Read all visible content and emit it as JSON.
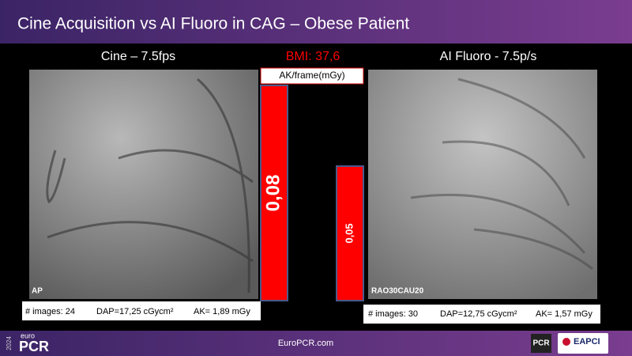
{
  "header": {
    "title": "Cine Acquisition vs AI Fluoro in CAG – Obese Patient"
  },
  "panels": [
    {
      "title": "Cine – 7.5fps",
      "view_label": "AP",
      "stats": [
        "# images: 24",
        "DAP=17,25 cGycm²",
        "AK= 1,89 mGy"
      ]
    },
    {
      "title": "AI Fluoro - 7.5p/s",
      "view_label": "RAO30CAU20",
      "stats": [
        "# images: 30",
        "DAP=12,75 cGycm²",
        "AK= 1,57 mGy"
      ]
    }
  ],
  "chart_data": {
    "type": "bar",
    "annotation": "BMI: 37,6",
    "title": "AK/frame(mGy)",
    "values": [
      0.08,
      0.05
    ],
    "value_labels": [
      "0,08",
      "0,05"
    ],
    "color": "#ff0000"
  },
  "footer": {
    "year": "2024",
    "brand_small": "euro",
    "brand": "PCR",
    "url": "EuroPCR.com",
    "logo1": "PCR",
    "logo2": "EAPCI"
  }
}
